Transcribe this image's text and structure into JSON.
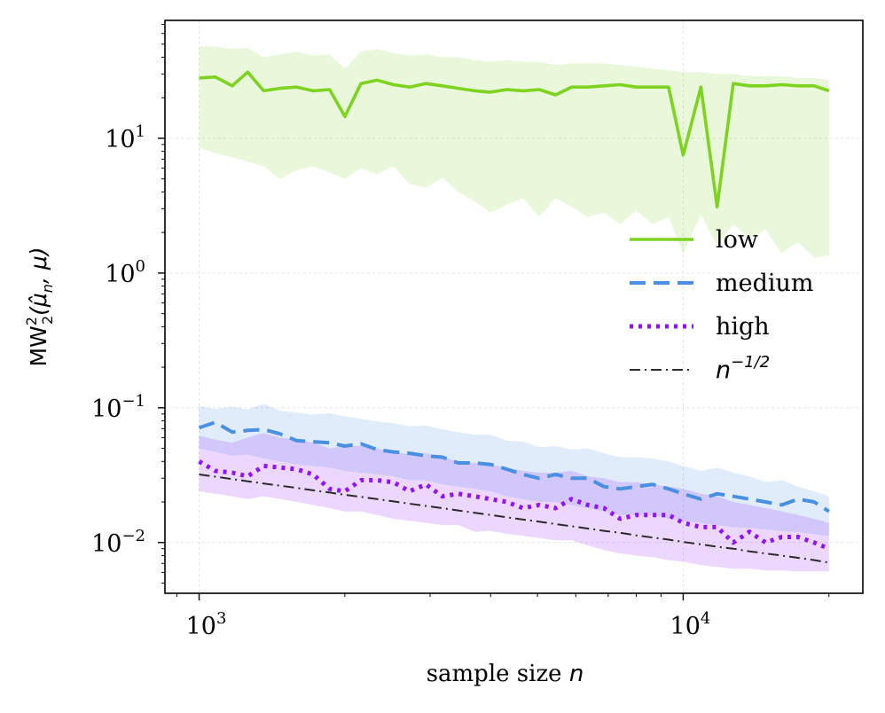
{
  "chart_data": {
    "type": "line",
    "xlabel": "sample size",
    "xlabel_var": "n",
    "ylabel": "MW",
    "ylabel_sup": "2",
    "ylabel_sub": "2",
    "ylabel_args": "(μ̂",
    "ylabel_args_sub": "n",
    "ylabel_args_tail": ", μ)",
    "x_scale": "log",
    "y_scale": "log",
    "xlim": [
      850,
      23500
    ],
    "ylim": [
      0.0042,
      75
    ],
    "grid": true,
    "legend_position": "center-right",
    "x_ticks": [
      {
        "value": 1000,
        "base": "10",
        "exp": "3"
      },
      {
        "value": 10000,
        "base": "10",
        "exp": "4"
      }
    ],
    "y_ticks": [
      {
        "value": 0.01,
        "base": "10",
        "exp": "−2"
      },
      {
        "value": 0.1,
        "base": "10",
        "exp": "−1"
      },
      {
        "value": 1,
        "base": "10",
        "exp": "0"
      },
      {
        "value": 10,
        "base": "10",
        "exp": "1"
      }
    ],
    "x": [
      1000,
      1080,
      1170,
      1260,
      1360,
      1470,
      1590,
      1720,
      1860,
      2000,
      2160,
      2330,
      2520,
      2720,
      2940,
      3180,
      3430,
      3710,
      4000,
      4320,
      4670,
      5040,
      5450,
      5880,
      6350,
      6860,
      7410,
      8000,
      8640,
      9330,
      10000,
      10880,
      11750,
      12690,
      13700,
      14800,
      15980,
      17260,
      18640,
      20000
    ],
    "series": [
      {
        "name": "low",
        "color": "#7ed321",
        "dash": "solid",
        "values": [
          28,
          28.5,
          24.5,
          31,
          22.5,
          23.5,
          24,
          22.5,
          23,
          14.5,
          25.5,
          27,
          25,
          24,
          25.5,
          24.5,
          23.5,
          22.5,
          22,
          23,
          22.5,
          23,
          21,
          24,
          24,
          24.5,
          25,
          24,
          24,
          24,
          7.5,
          24,
          3.1,
          25.5,
          24.5,
          24.5,
          25,
          24.5,
          24.5,
          22.5
        ],
        "upper": [
          48,
          48,
          46,
          47,
          40,
          42,
          44,
          41,
          42,
          33,
          44,
          46,
          43,
          41,
          42,
          40,
          40,
          38,
          37,
          38,
          37,
          37,
          35,
          36,
          36,
          36,
          35,
          34,
          33,
          32,
          31,
          31,
          30,
          30,
          29,
          29,
          29,
          28,
          28,
          27
        ],
        "lower": [
          8.5,
          7.8,
          7.2,
          6.7,
          6.2,
          5.0,
          5.8,
          6.2,
          5.6,
          5.0,
          6.0,
          5.4,
          6.2,
          4.6,
          4.3,
          5.1,
          4.0,
          3.4,
          2.8,
          3.2,
          3.6,
          2.6,
          3.6,
          3.1,
          2.6,
          2.8,
          2.3,
          2.9,
          2.3,
          2.6,
          1.4,
          2.7,
          1.6,
          2.3,
          1.8,
          2.1,
          1.4,
          1.7,
          1.3,
          1.35
        ]
      },
      {
        "name": "medium",
        "color": "#4a90e2",
        "dash": "dashed",
        "values": [
          0.071,
          0.078,
          0.066,
          0.068,
          0.069,
          0.064,
          0.057,
          0.056,
          0.055,
          0.052,
          0.054,
          0.049,
          0.047,
          0.046,
          0.044,
          0.043,
          0.039,
          0.039,
          0.038,
          0.035,
          0.032,
          0.03,
          0.032,
          0.03,
          0.03,
          0.026,
          0.025,
          0.026,
          0.027,
          0.025,
          0.023,
          0.021,
          0.023,
          0.022,
          0.021,
          0.02,
          0.019,
          0.021,
          0.02,
          0.017
        ],
        "upper": [
          0.103,
          0.098,
          0.102,
          0.097,
          0.107,
          0.095,
          0.092,
          0.089,
          0.091,
          0.086,
          0.083,
          0.079,
          0.077,
          0.073,
          0.074,
          0.069,
          0.066,
          0.063,
          0.063,
          0.057,
          0.056,
          0.051,
          0.052,
          0.049,
          0.05,
          0.046,
          0.043,
          0.043,
          0.042,
          0.04,
          0.037,
          0.034,
          0.036,
          0.033,
          0.031,
          0.028,
          0.029,
          0.026,
          0.024,
          0.022
        ],
        "lower": [
          0.05,
          0.047,
          0.044,
          0.045,
          0.042,
          0.04,
          0.038,
          0.037,
          0.036,
          0.034,
          0.033,
          0.032,
          0.031,
          0.029,
          0.029,
          0.027,
          0.026,
          0.025,
          0.024,
          0.022,
          0.021,
          0.02,
          0.02,
          0.019,
          0.018,
          0.017,
          0.016,
          0.016,
          0.016,
          0.015,
          0.0145,
          0.014,
          0.0135,
          0.013,
          0.0128,
          0.0125,
          0.0122,
          0.012,
          0.0115,
          0.0112
        ]
      },
      {
        "name": "high",
        "color": "#9013fe",
        "dash": "dotted",
        "values": [
          0.04,
          0.034,
          0.033,
          0.031,
          0.037,
          0.036,
          0.035,
          0.032,
          0.025,
          0.024,
          0.029,
          0.029,
          0.028,
          0.024,
          0.027,
          0.022,
          0.023,
          0.022,
          0.021,
          0.02,
          0.018,
          0.019,
          0.018,
          0.021,
          0.019,
          0.018,
          0.015,
          0.016,
          0.016,
          0.016,
          0.014,
          0.013,
          0.013,
          0.01,
          0.012,
          0.01,
          0.011,
          0.011,
          0.01,
          0.009
        ],
        "upper": [
          0.062,
          0.058,
          0.055,
          0.06,
          0.065,
          0.06,
          0.058,
          0.055,
          0.05,
          0.052,
          0.052,
          0.05,
          0.047,
          0.045,
          0.046,
          0.043,
          0.04,
          0.039,
          0.038,
          0.036,
          0.034,
          0.033,
          0.033,
          0.034,
          0.031,
          0.03,
          0.028,
          0.028,
          0.027,
          0.026,
          0.025,
          0.023,
          0.022,
          0.02,
          0.019,
          0.018,
          0.017,
          0.016,
          0.015,
          0.014
        ],
        "lower": [
          0.024,
          0.023,
          0.022,
          0.021,
          0.022,
          0.021,
          0.02,
          0.019,
          0.018,
          0.017,
          0.017,
          0.016,
          0.015,
          0.0145,
          0.014,
          0.0135,
          0.0135,
          0.012,
          0.0122,
          0.0116,
          0.0112,
          0.0108,
          0.0104,
          0.0104,
          0.0095,
          0.0088,
          0.0083,
          0.008,
          0.0078,
          0.0074,
          0.0072,
          0.0068,
          0.0066,
          0.0064,
          0.0064,
          0.0062,
          0.0062,
          0.0061,
          0.0061,
          0.0061
        ]
      },
      {
        "name": "n",
        "name_sup": "−1/2",
        "color": "#2b2b2b",
        "dash": "dashdot",
        "reference": true,
        "values": [
          0.032,
          0.0308,
          0.0296,
          0.0285,
          0.0274,
          0.0264,
          0.0254,
          0.0244,
          0.0235,
          0.0226,
          0.0218,
          0.021,
          0.0202,
          0.0194,
          0.0187,
          0.018,
          0.0173,
          0.0166,
          0.016,
          0.0154,
          0.0148,
          0.0143,
          0.0137,
          0.0132,
          0.0127,
          0.0122,
          0.0118,
          0.0113,
          0.0109,
          0.0105,
          0.0101,
          0.0097,
          0.0093,
          0.009,
          0.0086,
          0.0083,
          0.008,
          0.0077,
          0.0074,
          0.0071
        ]
      }
    ]
  }
}
